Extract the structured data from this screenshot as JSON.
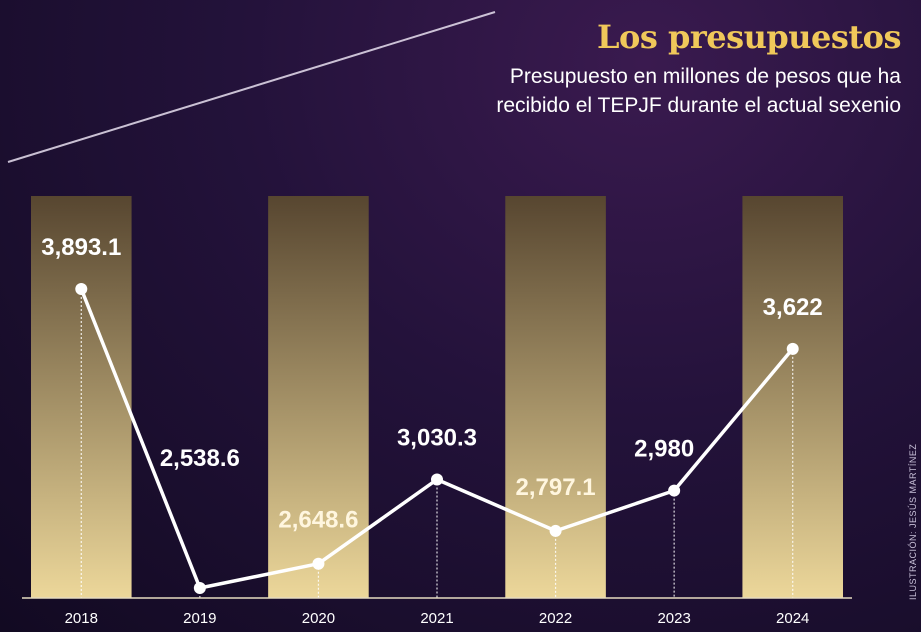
{
  "header": {
    "title": "Los presupuestos",
    "subtitle": "Presupuesto en millones de pesos que ha recibido el TEPJF durante el actual sexenio"
  },
  "credit": "ILUSTRACIÓN: JESÚS MARTÍNEZ",
  "colors": {
    "bar_top": "#574630",
    "bar_bottom": "#ecd79a",
    "line": "#ffffff",
    "title": "#f0c85a"
  },
  "chart_data": {
    "type": "line",
    "categories": [
      "2018",
      "2019",
      "2020",
      "2021",
      "2022",
      "2023",
      "2024"
    ],
    "values": [
      3893.1,
      2538.6,
      2648.6,
      3030.3,
      2797.1,
      2980,
      3622
    ],
    "data_labels": [
      "3,893.1",
      "2,538.6",
      "2,648.6",
      "3,030.3",
      "2,797.1",
      "2,980",
      "3,622"
    ],
    "title": "Los presupuestos",
    "subtitle": "Presupuesto en millones de pesos que ha recibido el TEPJF durante el actual sexenio",
    "xlabel": "",
    "ylabel": "",
    "ylim": [
      2538.6,
      3893.1
    ],
    "highlighted_categories": [
      "2018",
      "2020",
      "2022",
      "2024"
    ],
    "grid": false,
    "legend": "none"
  }
}
